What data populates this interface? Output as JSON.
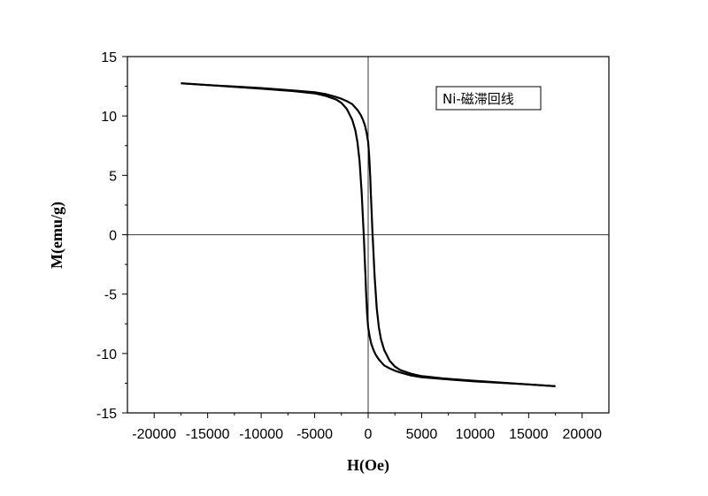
{
  "chart_data": {
    "type": "line",
    "title": "",
    "xlabel": "H(Oe)",
    "ylabel": "M(emu/g)",
    "xlim": [
      -22500,
      22500
    ],
    "ylim": [
      -15,
      15
    ],
    "xticks": [
      -20000,
      -15000,
      -10000,
      -5000,
      0,
      5000,
      10000,
      15000,
      20000
    ],
    "xtick_labels": [
      "-20000",
      "-15000",
      "-10000",
      "-5000",
      "0",
      "5000",
      "10000",
      "15000",
      "20000"
    ],
    "yticks": [
      -15,
      -10,
      -5,
      0,
      5,
      10,
      15
    ],
    "ytick_labels": [
      "-15",
      "-10",
      "-5",
      "0",
      "5",
      "10",
      "15"
    ],
    "grid": false,
    "zero_lines": true,
    "legend_position": "top-right",
    "series": [
      {
        "name": "Ni-磁滞回线",
        "color": "#000000",
        "branches": [
          {
            "x": [
              -17500,
              -15000,
              -10000,
              -7000,
              -5000,
              -4000,
              -3000,
              -2500,
              -2000,
              -1500,
              -1200,
              -1000,
              -800,
              -600,
              -500,
              -400,
              -300,
              -250,
              -200,
              -100,
              0,
              150,
              300,
              500,
              700,
              1000,
              1500,
              2000,
              2500,
              3000,
              4000,
              5000,
              7000,
              10000,
              15000,
              17500
            ],
            "y": [
              12.75,
              12.6,
              12.3,
              12.1,
              11.9,
              11.7,
              11.4,
              11.1,
              10.6,
              9.7,
              8.8,
              7.8,
              6.2,
              3.5,
              1.5,
              -0.3,
              -2.5,
              -3.5,
              -4.8,
              -6.6,
              -7.8,
              -8.6,
              -9.2,
              -9.7,
              -10.1,
              -10.5,
              -11.0,
              -11.25,
              -11.45,
              -11.6,
              -11.85,
              -12.0,
              -12.15,
              -12.35,
              -12.6,
              -12.75
            ]
          },
          {
            "x": [
              17500,
              15000,
              10000,
              7000,
              5000,
              4000,
              3000,
              2500,
              2000,
              1500,
              1200,
              1000,
              800,
              600,
              500,
              400,
              300,
              250,
              200,
              100,
              0,
              -150,
              -300,
              -500,
              -700,
              -1000,
              -1500,
              -2000,
              -2500,
              -3000,
              -4000,
              -5000,
              -7000,
              -10000,
              -15000,
              -17500
            ],
            "y": [
              -12.75,
              -12.6,
              -12.3,
              -12.1,
              -11.9,
              -11.7,
              -11.4,
              -11.1,
              -10.6,
              -9.7,
              -8.8,
              -7.8,
              -6.2,
              -3.5,
              -1.5,
              0.3,
              2.5,
              3.5,
              4.8,
              6.6,
              7.8,
              8.6,
              9.2,
              9.7,
              10.1,
              10.5,
              11.0,
              11.25,
              11.45,
              11.6,
              11.85,
              12.0,
              12.15,
              12.35,
              12.6,
              12.75
            ]
          }
        ]
      }
    ]
  }
}
